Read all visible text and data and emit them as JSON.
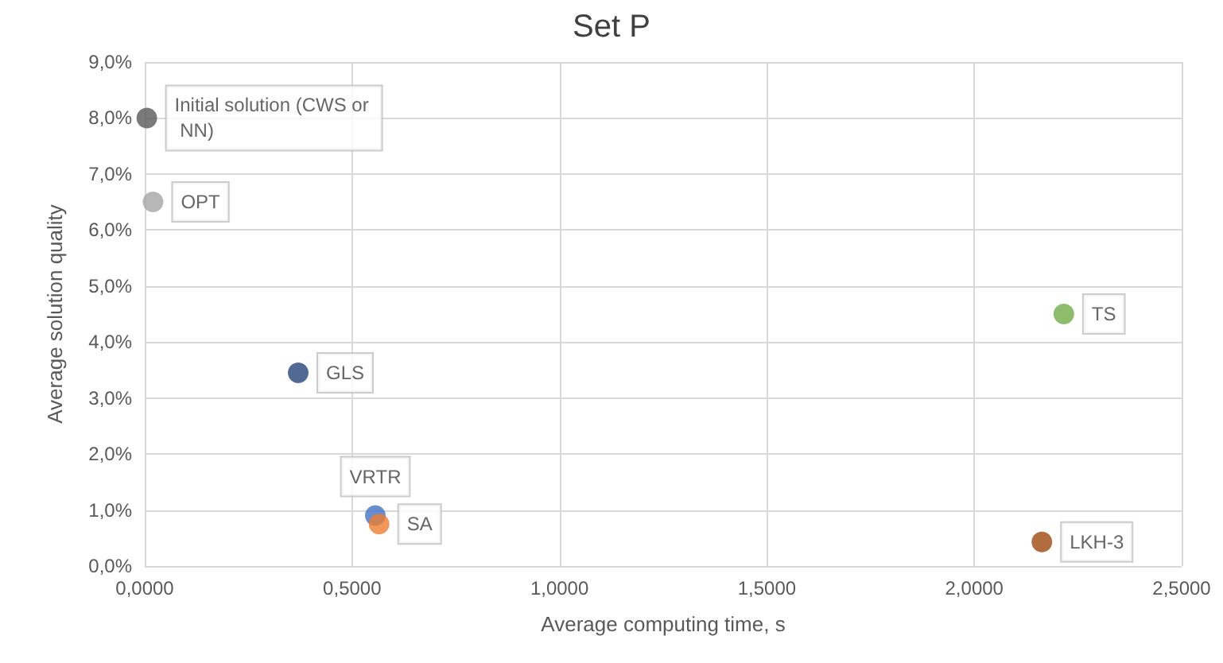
{
  "chart_data": {
    "type": "scatter",
    "title": "Set P",
    "xlabel": "Average computing time, s",
    "ylabel": "Average solution quality",
    "series": [
      {
        "name": "Initial solution (CWS or NN)",
        "color": "#595959",
        "x": [
          0.005
        ],
        "values": [
          8.0
        ]
      },
      {
        "name": "OPT",
        "color": "#a5a5a5",
        "x": [
          0.02
        ],
        "values": [
          6.5
        ]
      },
      {
        "name": "GLS",
        "color": "#264478",
        "x": [
          0.37
        ],
        "values": [
          3.45
        ]
      },
      {
        "name": "VRTR",
        "color": "#4472c4",
        "x": [
          0.556
        ],
        "values": [
          0.9
        ]
      },
      {
        "name": "SA",
        "color": "#ed7d31",
        "x": [
          0.565
        ],
        "values": [
          0.75
        ]
      },
      {
        "name": "TS",
        "color": "#70ad47",
        "x": [
          2.216
        ],
        "values": [
          4.5
        ]
      },
      {
        "name": "LKH-3",
        "color": "#9e480e",
        "x": [
          2.163
        ],
        "values": [
          0.43
        ]
      }
    ],
    "xlim": [
      0,
      2.5
    ],
    "ylim": [
      0,
      9
    ],
    "xticks": [
      {
        "value": 0,
        "label": "0,0000"
      },
      {
        "value": 0.5,
        "label": "0,5000"
      },
      {
        "value": 1,
        "label": "1,0000"
      },
      {
        "value": 1.5,
        "label": "1,5000"
      },
      {
        "value": 2,
        "label": "2,0000"
      },
      {
        "value": 2.5,
        "label": "2,5000"
      }
    ],
    "yticks": [
      {
        "value": 0,
        "label": "0,0%"
      },
      {
        "value": 1,
        "label": "1,0%"
      },
      {
        "value": 2,
        "label": "2,0%"
      },
      {
        "value": 3,
        "label": "3,0%"
      },
      {
        "value": 4,
        "label": "4,0%"
      },
      {
        "value": 5,
        "label": "5,0%"
      },
      {
        "value": 6,
        "label": "6,0%"
      },
      {
        "value": 7,
        "label": "7,0%"
      },
      {
        "value": 8,
        "label": "8,0%"
      },
      {
        "value": 9,
        "label": "9,0%"
      }
    ],
    "grid": true,
    "legend": false,
    "marker": "circle"
  }
}
